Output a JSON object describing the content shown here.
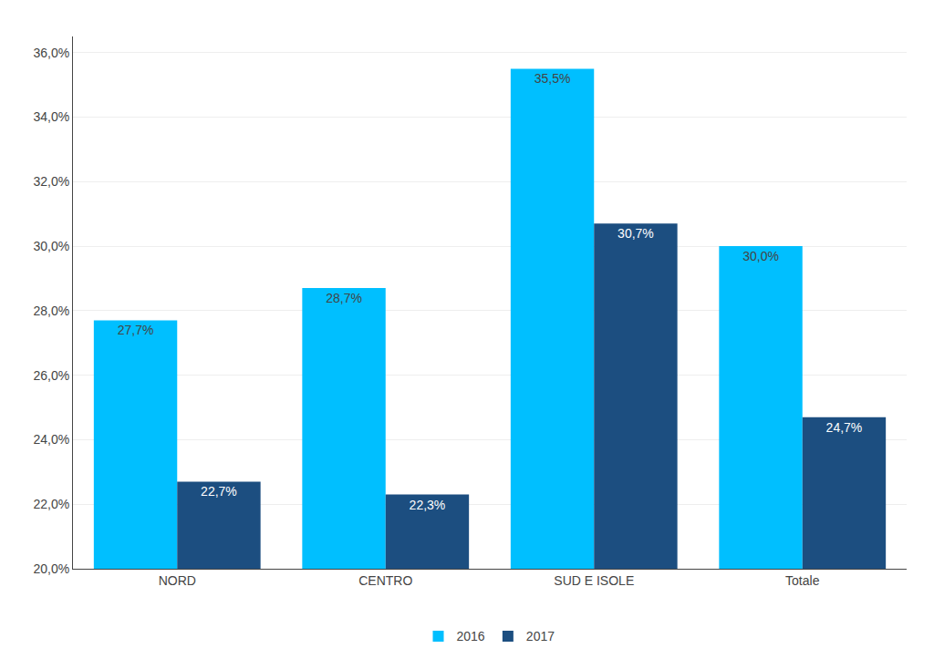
{
  "chart_data": {
    "type": "bar",
    "categories": [
      "NORD",
      "CENTRO",
      "SUD E ISOLE",
      "Totale"
    ],
    "series": [
      {
        "name": "2016",
        "color": "#00BFFF",
        "values": [
          27.7,
          28.7,
          35.5,
          30.0
        ],
        "value_labels": [
          "27,7%",
          "28,7%",
          "35,5%",
          "30,0%"
        ]
      },
      {
        "name": "2017",
        "color": "#1C4E80",
        "values": [
          22.7,
          22.3,
          30.7,
          24.7
        ],
        "value_labels": [
          "22,7%",
          "22,3%",
          "30,7%",
          "24,7%"
        ]
      }
    ],
    "ylim": [
      20.0,
      36.5
    ],
    "yticks": [
      {
        "value": 20.0,
        "label": "20,0%"
      },
      {
        "value": 22.0,
        "label": "22,0%"
      },
      {
        "value": 24.0,
        "label": "24,0%"
      },
      {
        "value": 26.0,
        "label": "26,0%"
      },
      {
        "value": 28.0,
        "label": "28,0%"
      },
      {
        "value": 30.0,
        "label": "30,0%"
      },
      {
        "value": 32.0,
        "label": "32,0%"
      },
      {
        "value": 34.0,
        "label": "34,0%"
      },
      {
        "value": 36.0,
        "label": "36,0%"
      }
    ],
    "grid": true,
    "legend": "bottom",
    "data_labels": true
  }
}
